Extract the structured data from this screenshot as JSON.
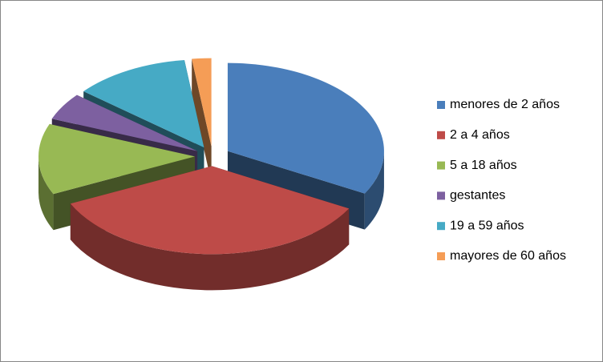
{
  "chart_data": {
    "type": "pie",
    "three_d": true,
    "exploded": true,
    "categories": [
      "menores de 2 años",
      "2 a 4 años",
      "5 a 18 años",
      "gestantes",
      "19 a 59 años",
      "mayores de 60 años"
    ],
    "values": [
      33,
      35,
      13,
      5,
      12,
      2
    ],
    "colors": [
      "#4a7ebb",
      "#be4b48",
      "#98b954",
      "#7d60a0",
      "#46aac5",
      "#f59d56"
    ],
    "legend": "right"
  }
}
